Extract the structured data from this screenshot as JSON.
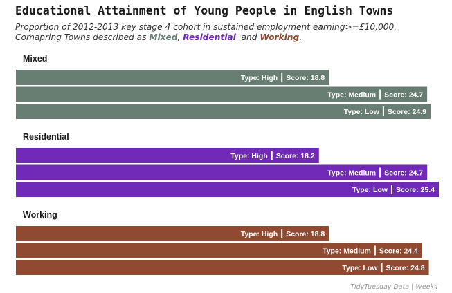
{
  "title": "Educational Attainment of Young People in English Towns",
  "subtitle_line1": "Proportion of 2012-2013 key stage 4 cohort in sustained employment earning>=£10,000.",
  "subtitle_line2_prefix": "Comapring Towns described as ",
  "subtitle_kw_mixed": "Mixed",
  "subtitle_sep": ", ",
  "subtitle_kw_residential": "Residential",
  "subtitle_and": "  and ",
  "subtitle_kw_working": "Working",
  "subtitle_end": ".",
  "caption": "TidyTuesday Data | Week4",
  "label_type_prefix": "Type: ",
  "label_score_prefix": "Score: ",
  "colors": {
    "Mixed": "#687e73",
    "Residential": "#7129b8",
    "Working": "#8f4a31"
  },
  "chart_data": {
    "type": "bar",
    "orientation": "horizontal",
    "x_range": [
      0,
      25.4
    ],
    "grid": false,
    "groups": [
      {
        "name": "Mixed",
        "bars": [
          {
            "type": "High",
            "score": 18.8
          },
          {
            "type": "Medium",
            "score": 24.7
          },
          {
            "type": "Low",
            "score": 24.9
          }
        ]
      },
      {
        "name": "Residential",
        "bars": [
          {
            "type": "High",
            "score": 18.2
          },
          {
            "type": "Medium",
            "score": 24.7
          },
          {
            "type": "Low",
            "score": 25.4
          }
        ]
      },
      {
        "name": "Working",
        "bars": [
          {
            "type": "High",
            "score": 18.8
          },
          {
            "type": "Medium",
            "score": 24.4
          },
          {
            "type": "Low",
            "score": 24.8
          }
        ]
      }
    ]
  }
}
